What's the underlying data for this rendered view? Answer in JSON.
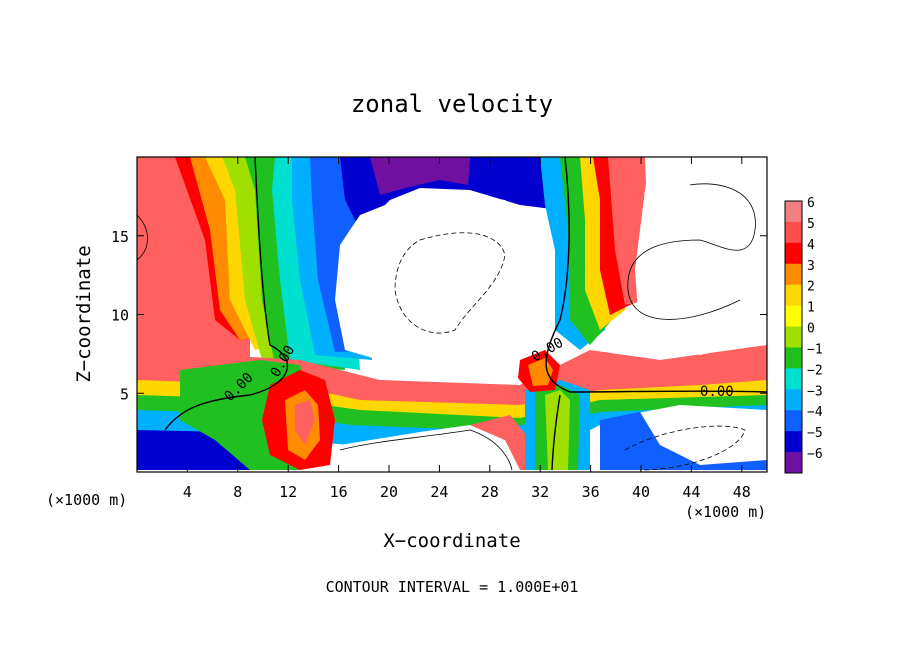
{
  "chart_data": {
    "type": "heatmap",
    "title": "zonal velocity",
    "xlabel": "X−coordinate",
    "ylabel": "Z−coordinate",
    "x_unit_left": "(×1000 m)",
    "x_unit_right": "(×1000 m)",
    "footer": "CONTOUR INTERVAL = 1.000E+01",
    "xlim": [
      0,
      50
    ],
    "ylim": [
      0,
      20
    ],
    "xticks": [
      4,
      8,
      12,
      16,
      20,
      24,
      28,
      32,
      36,
      40,
      44,
      48
    ],
    "xtick_labels": [
      "4",
      "8",
      "12",
      "16",
      "20",
      "24",
      "28",
      "32",
      "36",
      "40",
      "44",
      "48"
    ],
    "yticks": [
      5,
      10,
      15
    ],
    "ytick_labels": [
      "5",
      "10",
      "15"
    ],
    "colorbar": {
      "levels": [
        6,
        5,
        4,
        3,
        2,
        1,
        0,
        -1,
        -2,
        -3,
        -4,
        -5,
        -6
      ],
      "labels": [
        "6",
        "5",
        "4",
        "3",
        "2",
        "1",
        "0",
        "−1",
        "−2",
        "−3",
        "−4",
        "−5",
        "−6"
      ],
      "colors": [
        "#f08080",
        "#ff5050",
        "#ff0000",
        "#ff8c00",
        "#ffd700",
        "#ffff00",
        "#a0e000",
        "#20c020",
        "#00e0d0",
        "#00b0ff",
        "#1060ff",
        "#0000d0",
        "#7010a0"
      ]
    },
    "contour_labels": [
      "0.00",
      "0.00",
      "0.00",
      "0.00"
    ]
  }
}
